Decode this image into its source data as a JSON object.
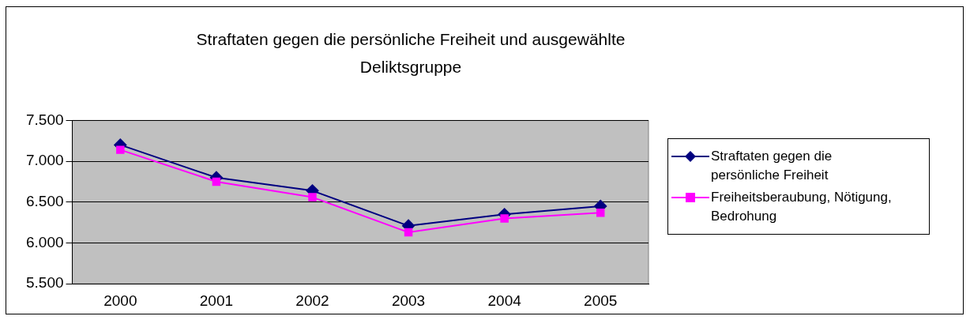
{
  "chart_data": {
    "type": "line",
    "title": "Straftaten gegen die persönliche Freiheit und ausgewählte Deliktsgruppe",
    "categories": [
      "2000",
      "2001",
      "2002",
      "2003",
      "2004",
      "2005"
    ],
    "series": [
      {
        "name": "Straftaten gegen die persönliche Freiheit",
        "color": "#000080",
        "marker": "diamond",
        "values": [
          7200,
          6800,
          6640,
          6210,
          6350,
          6450
        ]
      },
      {
        "name": "Freiheitsberaubung, Nötigung, Bedrohung",
        "color": "#ff00ff",
        "marker": "square",
        "values": [
          7140,
          6750,
          6560,
          6130,
          6300,
          6370
        ]
      }
    ],
    "ylim": [
      5500,
      7500
    ],
    "yticks": [
      {
        "value": 5500,
        "label": "5.500"
      },
      {
        "value": 6000,
        "label": "6.000"
      },
      {
        "value": 6500,
        "label": "6.500"
      },
      {
        "value": 7000,
        "label": "7.000"
      },
      {
        "value": 7500,
        "label": "7.500"
      }
    ],
    "grid": "y",
    "legend": "right"
  }
}
